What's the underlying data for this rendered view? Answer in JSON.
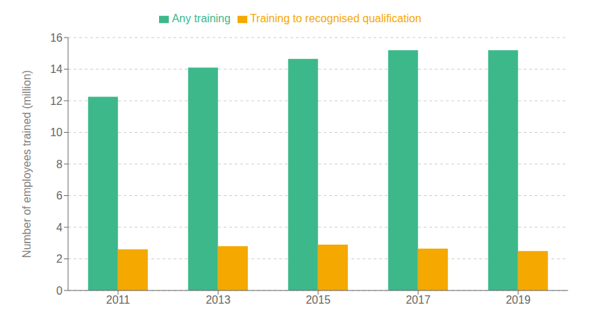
{
  "chart_data": {
    "type": "bar",
    "categories": [
      "2011",
      "2013",
      "2015",
      "2017",
      "2019"
    ],
    "series": [
      {
        "name": "Any training",
        "color": "#3db88b",
        "values": [
          12.25,
          14.1,
          14.65,
          15.2,
          15.2
        ]
      },
      {
        "name": "Training to recognised qualification",
        "color": "#f5a800",
        "values": [
          2.6,
          2.8,
          2.9,
          2.65,
          2.5
        ]
      }
    ],
    "ylabel": "Number of employees trained (million)",
    "ylim": [
      0,
      16
    ],
    "yticks": [
      0,
      2,
      4,
      6,
      8,
      10,
      12,
      14,
      16
    ],
    "grid": true,
    "legend": "top"
  }
}
